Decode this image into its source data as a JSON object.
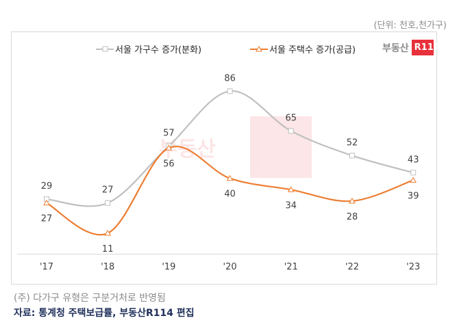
{
  "unit_label": "(단위: 천호,천가구)",
  "logo": {
    "text": "부동산",
    "badge": "R114"
  },
  "note": "(주) 다가구 유형은 구분거처로 반영됨",
  "source": "자료: 통계청 주택보급률, 부동산R114 편집",
  "chart_data": {
    "type": "line",
    "categories": [
      "'17",
      "'18",
      "'19",
      "'20",
      "'21",
      "'22",
      "'23"
    ],
    "series": [
      {
        "name": "서울 가구수 증가(분화)",
        "values": [
          29,
          27,
          57,
          86,
          65,
          52,
          43
        ],
        "color": "#bfbfbf",
        "marker": "square",
        "label_pos": "above"
      },
      {
        "name": "서울 주택수 증가(공급)",
        "values": [
          27,
          11,
          56,
          40,
          34,
          28,
          39
        ],
        "color": "#ed7d31",
        "marker": "triangle",
        "label_pos": "below"
      }
    ],
    "ylim": [
      0,
      95
    ],
    "grid": false,
    "legend": "top",
    "smooth": true
  }
}
